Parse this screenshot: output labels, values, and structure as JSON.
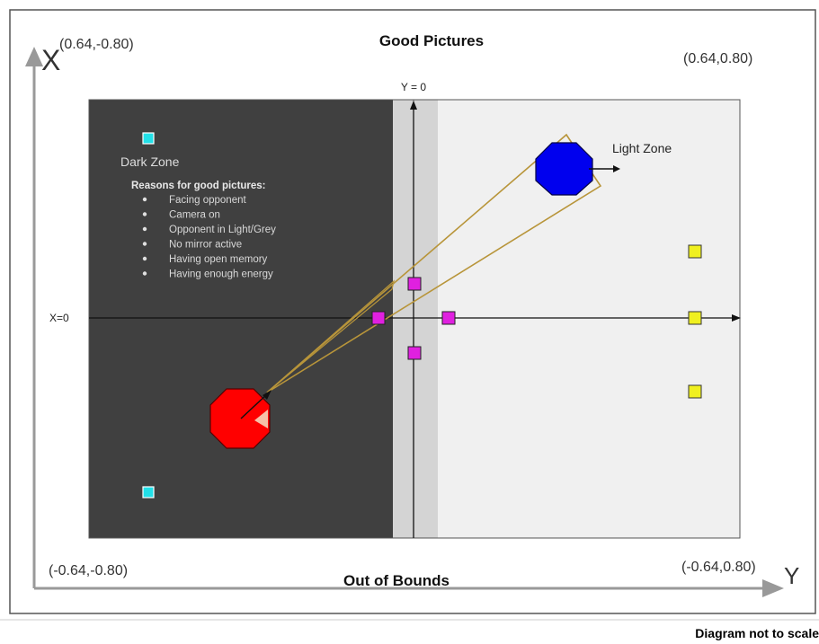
{
  "title": "Good Pictures",
  "bottom_title": "Out of Bounds",
  "footer_note": "Diagram not to scale",
  "axes": {
    "x_axis_letter": "X",
    "y_axis_letter": "Y",
    "y_zero_label": "Y = 0",
    "x_zero_label": "X=0"
  },
  "corners": {
    "top_left": "(0.64,-0.80)",
    "top_right": "(0.64,0.80)",
    "bottom_left": "(-0.64,-0.80)",
    "bottom_right": "(-0.64,0.80)"
  },
  "dark_zone": {
    "label": "Dark Zone",
    "reasons_heading": "Reasons for good pictures:",
    "reasons": [
      "Facing opponent",
      "Camera on",
      "Opponent in Light/Grey",
      "No mirror active",
      "Having open memory",
      "Having enough energy"
    ]
  },
  "light_zone": {
    "label": "Light Zone"
  },
  "colors": {
    "dark_zone": "#404040",
    "grey_band": "#d4d4d4",
    "light_zone": "#f0f0f0",
    "frame_border": "#555555",
    "robot_red": "#ff0000",
    "robot_blue": "#0000ee",
    "view_cone": "#b8953a",
    "marker_cyan": "#22e0e8",
    "marker_magenta": "#e020e0",
    "marker_yellow": "#f0f020",
    "axis_arrow": "#999999"
  },
  "icons": {
    "red_robot": "octagon-robot-icon",
    "blue_robot": "octagon-robot-icon",
    "markers": "square-marker-icon"
  }
}
